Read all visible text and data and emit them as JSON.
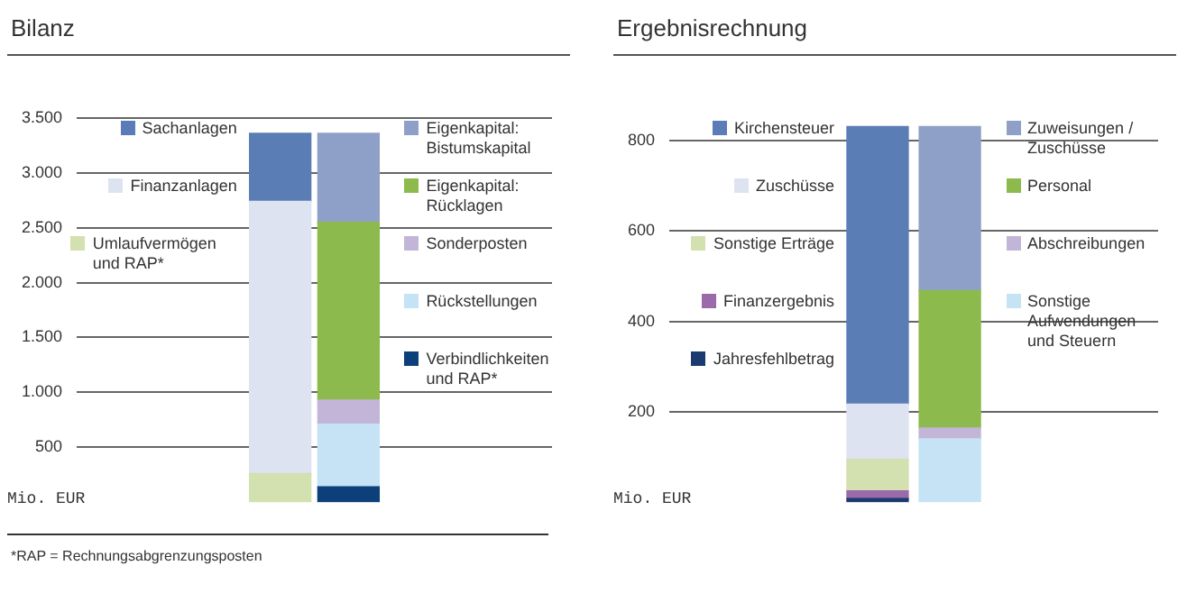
{
  "chart_data": [
    {
      "type": "bar",
      "title": "Bilanz",
      "ylabel": "Mio. EUR",
      "stacked": true,
      "categories": [
        null,
        null
      ],
      "series": [
        {
          "name": "Umlaufvermögen und RAP*",
          "color": "#d3e0b0",
          "values": [
            260,
            null
          ]
        },
        {
          "name": "Finanzanlagen",
          "color": "#dde3f0",
          "values": [
            2480,
            null
          ]
        },
        {
          "name": "Sachanlagen",
          "color": "#5a7db5",
          "values": [
            620,
            null
          ]
        },
        {
          "name": "Verbindlichkeiten und RAP*",
          "color": "#0d3f7a",
          "values": [
            null,
            140
          ]
        },
        {
          "name": "Rückstellungen",
          "color": "#c5e3f5",
          "values": [
            null,
            570
          ]
        },
        {
          "name": "Sonderposten",
          "color": "#c2b5d8",
          "values": [
            null,
            220
          ]
        },
        {
          "name": "Eigenkapital: Rücklagen",
          "color": "#8cba4c",
          "values": [
            null,
            1620
          ]
        },
        {
          "name": "Eigenkapital: Bistumskapital",
          "color": "#8fa0c8",
          "values": [
            null,
            810
          ]
        }
      ],
      "ylim": [
        0,
        3500
      ],
      "yticks": [
        {
          "value": 500,
          "label": "500"
        },
        {
          "value": 1000,
          "label": "1.000"
        },
        {
          "value": 1500,
          "label": "1.500"
        },
        {
          "value": 2000,
          "label": "2.000"
        },
        {
          "value": 2500,
          "label": "2.500"
        },
        {
          "value": 3000,
          "label": "3.000"
        },
        {
          "value": 3500,
          "label": "3.500"
        }
      ],
      "grid": "y",
      "legend": "top right",
      "annotations": [
        "*RAP = Rechnungsabgrenzungsposten"
      ]
    },
    {
      "type": "bar",
      "title": "Ergebnisrechnung",
      "ylabel": "Mio. EUR",
      "stacked": true,
      "categories": [
        null,
        null
      ],
      "series": [
        {
          "name": "Jahresfehlbetrag",
          "color": "#1a3a70",
          "values": [
            8,
            null
          ]
        },
        {
          "name": "Finanzergebnis",
          "color": "#9a6aaa",
          "values": [
            17,
            null
          ]
        },
        {
          "name": "Sonstige Erträge",
          "color": "#d3e0b0",
          "values": [
            70,
            null
          ]
        },
        {
          "name": "Zuschüsse",
          "color": "#dde3f0",
          "values": [
            122,
            null
          ]
        },
        {
          "name": "Kirchensteuer",
          "color": "#5a7db5",
          "values": [
            614,
            null
          ]
        },
        {
          "name": "Sonstige Aufwendungen und Steuern",
          "color": "#c5e3f5",
          "values": [
            null,
            140
          ]
        },
        {
          "name": "Abschreibungen",
          "color": "#c2b5d8",
          "values": [
            null,
            24
          ]
        },
        {
          "name": "Personal",
          "color": "#8cba4c",
          "values": [
            null,
            304
          ]
        },
        {
          "name": "Zuweisungen / Zuschüsse",
          "color": "#8fa0c8",
          "values": [
            null,
            363
          ]
        }
      ],
      "ylim": [
        0,
        850
      ],
      "yticks": [
        200,
        400,
        600,
        800
      ],
      "grid": "y",
      "legend": "left"
    }
  ]
}
